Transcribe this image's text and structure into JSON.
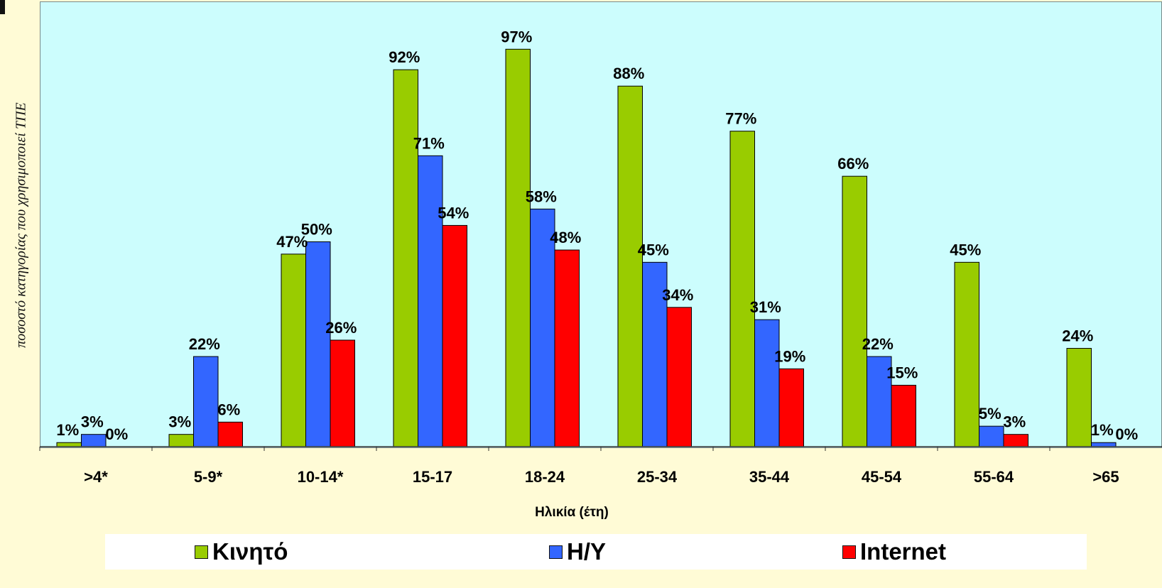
{
  "chart_data": {
    "type": "bar",
    "xlabel": "Ηλικία (έτη)",
    "ylabel": "ποσοστό κατηγορίας που χρησιμοποιεί ΤΠΕ",
    "ylim": [
      0,
      100
    ],
    "grid": false,
    "legend_position": "bottom",
    "categories": [
      ">4*",
      "5-9*",
      "10-14*",
      "15-17",
      "18-24",
      "25-34",
      "35-44",
      "45-54",
      "55-64",
      ">65"
    ],
    "series": [
      {
        "name": "Κινητό",
        "color": "#99cc00",
        "values": [
          1,
          3,
          47,
          92,
          97,
          88,
          77,
          66,
          45,
          24
        ],
        "labels": [
          "1%",
          "3%",
          "47%",
          "92%",
          "97%",
          "88%",
          "77%",
          "66%",
          "45%",
          "24%"
        ]
      },
      {
        "name": "Η/Υ",
        "color": "#3366ff",
        "values": [
          3,
          22,
          50,
          71,
          58,
          45,
          31,
          22,
          5,
          1
        ],
        "labels": [
          "3%",
          "22%",
          "50%",
          "71%",
          "58%",
          "45%",
          "31%",
          "22%",
          "5%",
          "1%"
        ]
      },
      {
        "name": "Internet",
        "color": "#ff0000",
        "values": [
          0,
          6,
          26,
          54,
          48,
          34,
          19,
          15,
          3,
          0
        ],
        "labels": [
          "0%",
          "6%",
          "26%",
          "54%",
          "48%",
          "34%",
          "19%",
          "15%",
          "3%",
          "0%"
        ]
      }
    ]
  }
}
